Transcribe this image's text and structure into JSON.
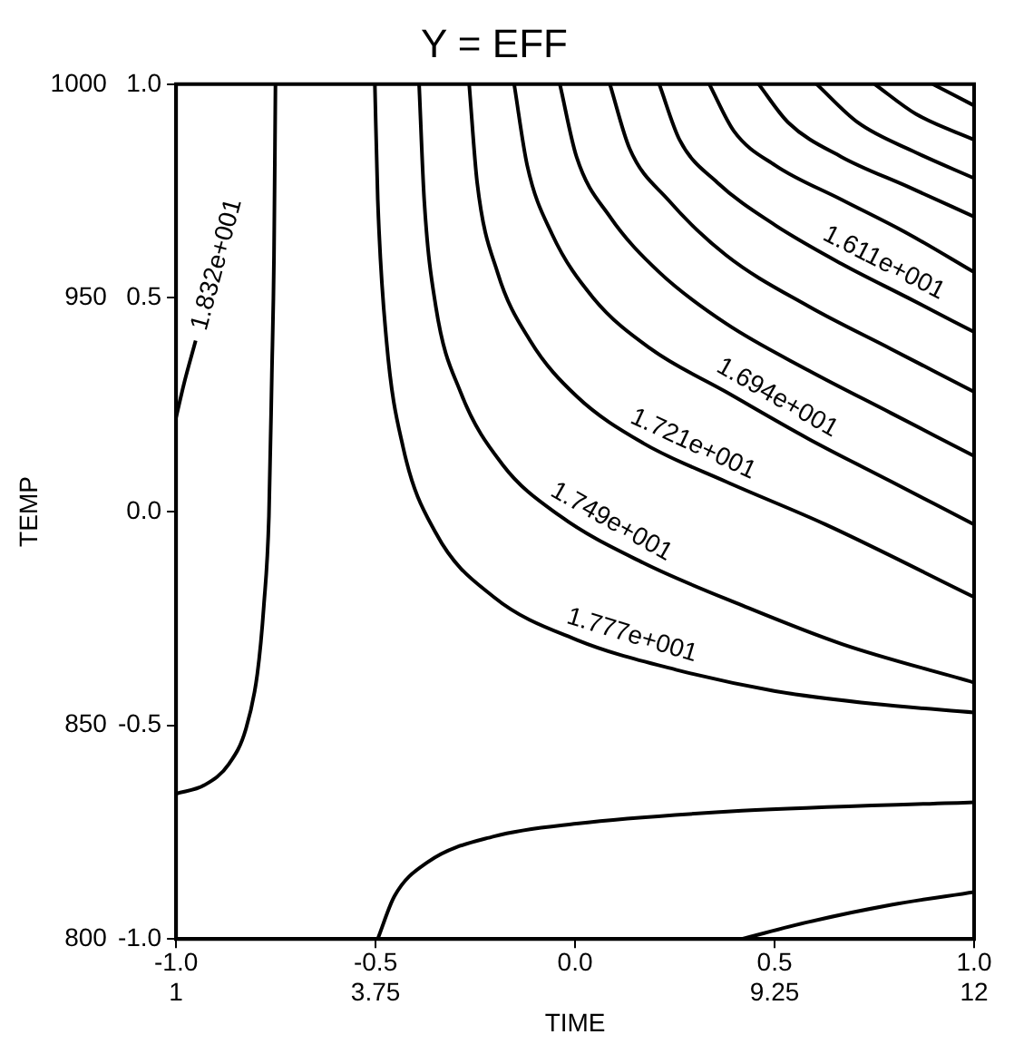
{
  "chart_data": {
    "type": "line",
    "title": "Y = EFF",
    "xlabel": "TIME",
    "ylabel": "TEMP",
    "xlim": [
      1,
      12
    ],
    "xticks": [
      1,
      3.75,
      9.25,
      12
    ],
    "ylim": [
      800,
      1000
    ],
    "yticks": [
      800,
      850,
      950,
      1000
    ],
    "x2lim": [
      -1,
      1
    ],
    "x2ticks": [
      {
        "value": -1,
        "label": "-1.0"
      },
      {
        "value": -0.5,
        "label": "-0.5"
      },
      {
        "value": 0,
        "label": "0.0"
      },
      {
        "value": 0.5,
        "label": "0.5"
      },
      {
        "value": 1,
        "label": "1.0"
      }
    ],
    "y2lim": [
      -1,
      1
    ],
    "y2ticks": [
      {
        "value": -1,
        "label": "-1.0"
      },
      {
        "value": -0.5,
        "label": "-0.5"
      },
      {
        "value": 0,
        "label": "0.0"
      },
      {
        "value": 0.5,
        "label": "0.5"
      },
      {
        "value": 1,
        "label": "1.0"
      }
    ],
    "grid": false,
    "legend": false,
    "marker": "none",
    "line_style": "solid",
    "series": [
      {
        "name": "1.832e+001",
        "color": "#000000",
        "x": [
          1,
          1.11,
          1.27
        ],
        "values": [
          922,
          930,
          940
        ]
      },
      {
        "color": "#000000",
        "x": [
          1,
          1.39,
          1.73,
          1.96,
          2.12,
          2.21,
          2.28,
          2.32,
          2.35,
          2.37
        ],
        "values": [
          834,
          836,
          841,
          849,
          862,
          878,
          899,
          932,
          960,
          1000
        ]
      },
      {
        "name": "1.777e+001",
        "color": "#000000",
        "x": [
          3.74,
          3.78,
          3.9,
          4.13,
          4.58,
          5.38,
          6.52,
          7.89,
          9.26,
          10.63,
          12
        ],
        "values": [
          1000,
          973,
          940,
          915,
          895,
          880,
          870,
          863,
          858,
          855,
          853
        ]
      },
      {
        "name": "1.749e+001",
        "color": "#000000",
        "x": [
          4.35,
          4.42,
          4.58,
          4.92,
          5.5,
          6.29,
          7.44,
          8.81,
          10.18,
          12
        ],
        "values": [
          1000,
          973,
          948,
          928,
          911,
          899,
          888,
          878,
          869,
          860
        ]
      },
      {
        "name": "1.721e+001",
        "color": "#000000",
        "x": [
          5.04,
          5.15,
          5.43,
          5.88,
          6.52,
          7.44,
          8.58,
          9.95,
          12
        ],
        "values": [
          1000,
          977,
          956,
          940,
          927,
          916,
          907,
          897,
          880
        ]
      },
      {
        "name": "1.694e+001",
        "color": "#000000",
        "x": [
          5.66,
          5.84,
          6.18,
          6.75,
          7.55,
          8.58,
          9.72,
          10.86,
          12
        ],
        "values": [
          1000,
          981,
          965,
          950,
          938,
          928,
          917,
          907,
          897
        ]
      },
      {
        "color": "#000000",
        "x": [
          6.29,
          6.52,
          6.98,
          7.66,
          8.58,
          9.72,
          10.86,
          12
        ],
        "values": [
          1000,
          983,
          969,
          956,
          944,
          933,
          923,
          913
        ]
      },
      {
        "color": "#000000",
        "x": [
          6.98,
          7.25,
          7.78,
          8.58,
          9.72,
          10.86,
          12
        ],
        "values": [
          1000,
          985,
          973,
          960,
          948,
          938,
          928
        ]
      },
      {
        "name": "1.611e+001",
        "color": "#000000",
        "x": [
          7.66,
          7.94,
          8.46,
          9.26,
          10.17,
          11.09,
          12
        ],
        "values": [
          1000,
          987,
          977,
          967,
          958,
          950,
          942
        ]
      },
      {
        "color": "#000000",
        "x": [
          8.35,
          8.69,
          9.26,
          10.17,
          11.09,
          12
        ],
        "values": [
          1000,
          989,
          981,
          973,
          965,
          956
        ]
      },
      {
        "color": "#000000",
        "x": [
          9.03,
          9.44,
          10.17,
          11.09,
          12
        ],
        "values": [
          1000,
          991,
          983,
          976,
          969
        ]
      },
      {
        "color": "#000000",
        "x": [
          9.83,
          10.4,
          11.2,
          12
        ],
        "values": [
          1000,
          991,
          984,
          978
        ]
      },
      {
        "color": "#000000",
        "x": [
          10.63,
          11.2,
          12
        ],
        "values": [
          1000,
          993,
          987
        ]
      },
      {
        "color": "#000000",
        "x": [
          11.43,
          12
        ],
        "values": [
          1000,
          995
        ]
      },
      {
        "color": "#000000",
        "x": [
          3.78,
          4.01,
          4.47,
          5.38,
          6.52,
          8.8,
          12
        ],
        "values": [
          800,
          810,
          818,
          824,
          827,
          830,
          832
        ]
      },
      {
        "color": "#000000",
        "x": [
          8.8,
          9.72,
          10.86,
          12
        ],
        "values": [
          800,
          804,
          808,
          811
        ]
      }
    ]
  }
}
